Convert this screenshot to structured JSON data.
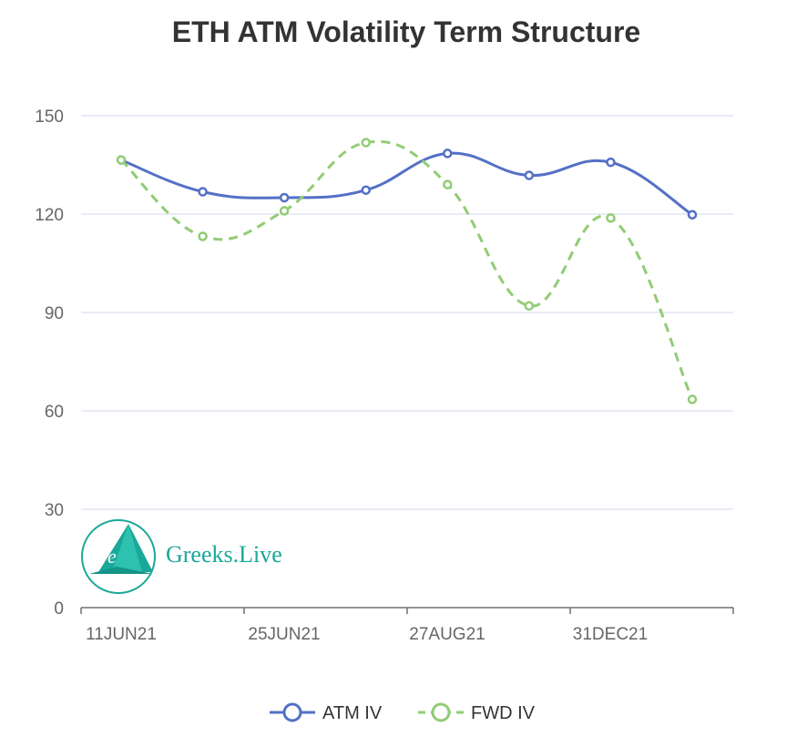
{
  "chart_data": {
    "type": "line",
    "title": "ETH ATM Volatility Term Structure",
    "xlabel": "",
    "ylabel": "",
    "ylim": [
      0,
      150
    ],
    "yticks": [
      0,
      30,
      60,
      90,
      120,
      150
    ],
    "x_tick_labels": [
      "11JUN21",
      "25JUN21",
      "27AUG21",
      "31DEC21"
    ],
    "grid": true,
    "legend_position": "bottom-center",
    "series": [
      {
        "name": "ATM IV",
        "color": "#5470c6",
        "line_style": "solid",
        "values": [
          136.5,
          126.8,
          125.0,
          127.3,
          138.5,
          131.8,
          135.8,
          119.8
        ]
      },
      {
        "name": "FWD IV",
        "color": "#91cc75",
        "line_style": "dashed",
        "values": [
          136.5,
          113.2,
          121.0,
          141.8,
          129.0,
          92.0,
          118.8,
          63.5
        ]
      }
    ]
  },
  "watermark": {
    "text": "Greeks.Live",
    "logo_letter": "e",
    "color": "#1aa89a"
  }
}
